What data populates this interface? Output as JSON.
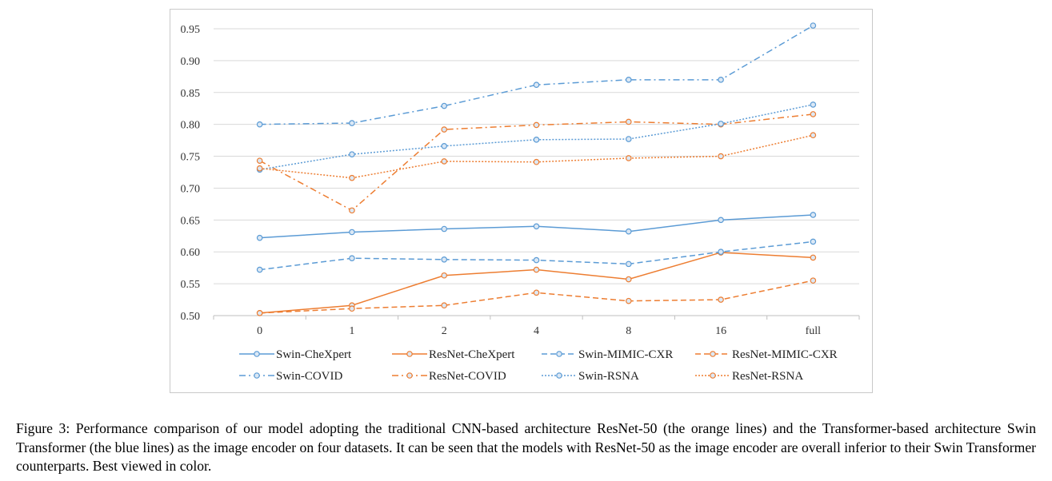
{
  "chart_data": {
    "type": "line",
    "categories": [
      "0",
      "1",
      "2",
      "4",
      "8",
      "16",
      "full"
    ],
    "ylim": [
      0.5,
      0.95
    ],
    "yticks": [
      "0.95",
      "0.90",
      "0.85",
      "0.80",
      "0.75",
      "0.70",
      "0.65",
      "0.60",
      "0.55",
      "0.50"
    ],
    "grid": true,
    "legend_position": "bottom",
    "series": [
      {
        "name": "Swin-CheXpert",
        "color": "#5b9bd5",
        "dash": "solid",
        "values": [
          0.622,
          0.631,
          0.636,
          0.64,
          0.632,
          0.65,
          0.658
        ]
      },
      {
        "name": "ResNet-CheXpert",
        "color": "#ed7d31",
        "dash": "solid",
        "values": [
          0.504,
          0.516,
          0.563,
          0.572,
          0.557,
          0.599,
          0.591
        ]
      },
      {
        "name": "Swin-MIMIC-CXR",
        "color": "#5b9bd5",
        "dash": "dash",
        "values": [
          0.572,
          0.59,
          0.588,
          0.587,
          0.581,
          0.6,
          0.616
        ]
      },
      {
        "name": "ResNet-MIMIC-CXR",
        "color": "#ed7d31",
        "dash": "dash",
        "values": [
          0.504,
          0.511,
          0.516,
          0.536,
          0.523,
          0.525,
          0.555
        ]
      },
      {
        "name": "Swin-COVID",
        "color": "#5b9bd5",
        "dash": "dashdot",
        "values": [
          0.8,
          0.802,
          0.829,
          0.862,
          0.87,
          0.87,
          0.955
        ]
      },
      {
        "name": "ResNet-COVID",
        "color": "#ed7d31",
        "dash": "dashdot",
        "values": [
          0.743,
          0.665,
          0.792,
          0.799,
          0.804,
          0.8,
          0.816
        ]
      },
      {
        "name": "Swin-RSNA",
        "color": "#5b9bd5",
        "dash": "dot",
        "values": [
          0.729,
          0.753,
          0.766,
          0.776,
          0.777,
          0.801,
          0.831
        ]
      },
      {
        "name": "ResNet-RSNA",
        "color": "#ed7d31",
        "dash": "dot",
        "values": [
          0.731,
          0.716,
          0.742,
          0.741,
          0.747,
          0.75,
          0.783
        ]
      }
    ]
  },
  "caption": "Figure 3: Performance comparison of our model adopting the traditional CNN-based architecture ResNet-50 (the orange lines) and the Transformer-based architecture Swin Transformer (the blue lines) as the image encoder on four datasets. It can be seen that the models with ResNet-50 as the image encoder are overall inferior to their Swin Transformer counterparts. Best viewed in color."
}
